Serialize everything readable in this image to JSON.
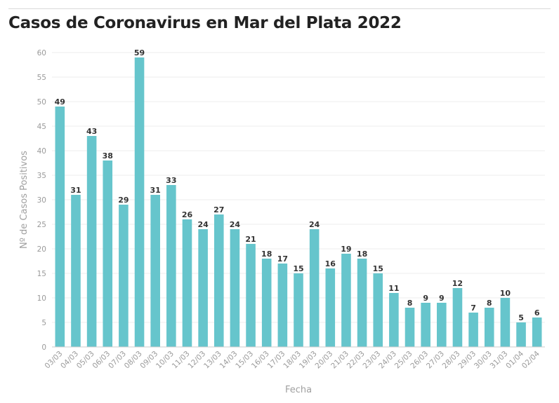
{
  "header": {
    "title": "Casos de Coronavirus en Mar del Plata 2022"
  },
  "colors": {
    "bar": "#66c5cc",
    "grid": "#eeeeee",
    "axis": "#cccccc",
    "tick_text": "#9a9a9a",
    "value_text": "#333333"
  },
  "chart_data": {
    "type": "bar",
    "title": "Casos de Coronavirus en Mar del Plata 2022",
    "xlabel": "Fecha",
    "ylabel": "Nº de Casos Positivos",
    "ylim": [
      0,
      60
    ],
    "yticks": [
      0,
      5,
      10,
      15,
      20,
      25,
      30,
      35,
      40,
      45,
      50,
      55,
      60
    ],
    "grid": true,
    "categories": [
      "03/03",
      "04/03",
      "05/03",
      "06/03",
      "07/03",
      "08/03",
      "09/03",
      "10/03",
      "11/03",
      "12/03",
      "13/03",
      "14/03",
      "15/03",
      "16/03",
      "17/03",
      "18/03",
      "19/03",
      "20/03",
      "21/03",
      "22/03",
      "23/03",
      "24/03",
      "25/03",
      "26/03",
      "27/03",
      "28/03",
      "29/03",
      "30/03",
      "31/03",
      "01/04",
      "02/04"
    ],
    "values": [
      49,
      31,
      43,
      38,
      29,
      59,
      31,
      33,
      26,
      24,
      27,
      24,
      21,
      18,
      17,
      15,
      24,
      16,
      19,
      18,
      15,
      11,
      8,
      9,
      9,
      12,
      7,
      8,
      10,
      5,
      6
    ]
  }
}
